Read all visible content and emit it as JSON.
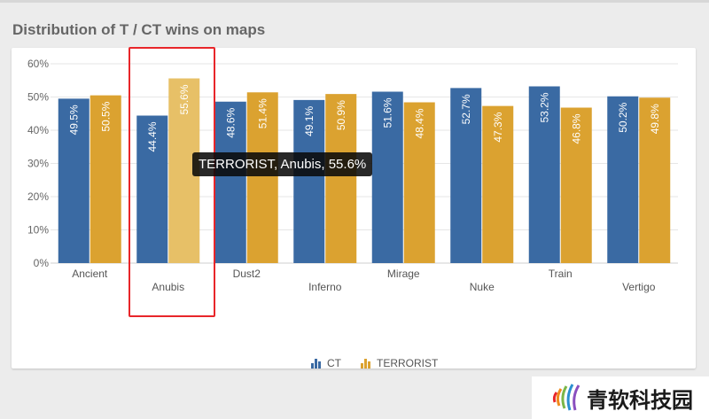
{
  "page_title": "Distribution of T / CT wins on maps",
  "tooltip": "TERRORIST, Anubis, 55.6%",
  "watermark_text": "青软科技园",
  "colors": {
    "ct": "#3a6aa3",
    "terrorist": "#dba230",
    "terrorist_highlight": "#e7c067",
    "highlight_box": "#e8262a"
  },
  "legend": [
    {
      "label": "CT",
      "icon": "bar-chart-icon"
    },
    {
      "label": "TERRORIST",
      "icon": "bar-chart-icon"
    }
  ],
  "chart_data": {
    "type": "bar",
    "title": "Distribution of T / CT wins on maps",
    "xlabel": "",
    "ylabel": "",
    "categories": [
      "Ancient",
      "Anubis",
      "Dust2",
      "Inferno",
      "Mirage",
      "Nuke",
      "Train",
      "Vertigo"
    ],
    "series": [
      {
        "name": "CT",
        "values": [
          49.5,
          44.4,
          48.6,
          49.1,
          51.6,
          52.7,
          53.2,
          50.2
        ],
        "labels": [
          "49.5%",
          "44.4%",
          "48.6%",
          "49.1%",
          "51.6%",
          "52.7%",
          "53.2%",
          "50.2%"
        ]
      },
      {
        "name": "TERRORIST",
        "values": [
          50.5,
          55.6,
          51.4,
          50.9,
          48.4,
          47.3,
          46.8,
          49.8
        ],
        "labels": [
          "50.5%",
          "55.6%",
          "51.4%",
          "50.9%",
          "48.4%",
          "47.3%",
          "46.8%",
          "49.8%"
        ]
      }
    ],
    "ylim": [
      0,
      60
    ],
    "yticks": [
      "0%",
      "10%",
      "20%",
      "30%",
      "40%",
      "50%",
      "60%"
    ],
    "highlighted": {
      "series": "TERRORIST",
      "category": "Anubis"
    },
    "grid": true,
    "legend_position": "bottom"
  }
}
